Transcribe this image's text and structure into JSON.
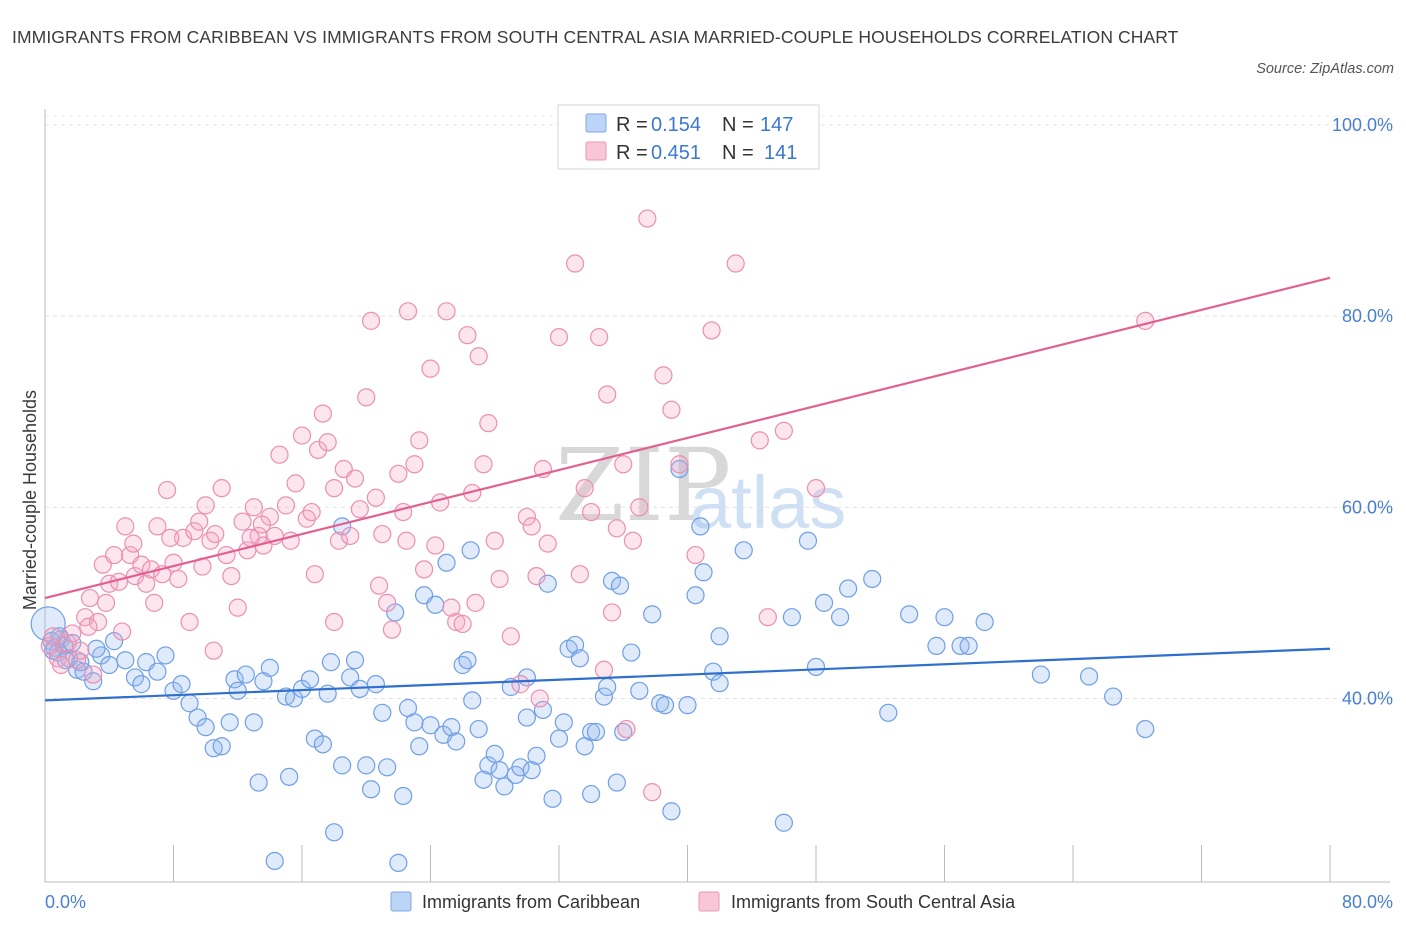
{
  "title": "IMMIGRANTS FROM CARIBBEAN VS IMMIGRANTS FROM SOUTH CENTRAL ASIA MARRIED-COUPLE HOUSEHOLDS CORRELATION CHART",
  "source": "Source: ZipAtlas.com",
  "watermark": {
    "zip": "ZIP",
    "atlas": "atlas"
  },
  "legend": {
    "r_label": "R =",
    "n_label": "N =",
    "items": [
      {
        "r": "0.154",
        "n": "147"
      },
      {
        "r": "0.451",
        "n": "141"
      }
    ]
  },
  "chart_data": {
    "type": "scatter",
    "title": "IMMIGRANTS FROM CARIBBEAN VS IMMIGRANTS FROM SOUTH CENTRAL ASIA MARRIED-COUPLE HOUSEHOLDS CORRELATION CHART",
    "xlabel": "",
    "ylabel": "Married-couple Households",
    "xlim": [
      0,
      80
    ],
    "ylim": [
      20.8,
      102.5
    ],
    "x_tick_labels": [
      {
        "value": 0,
        "label": "0.0%"
      },
      {
        "value": 80,
        "label": "80.0%"
      }
    ],
    "y_tick_labels": [
      {
        "value": 40,
        "label": "40.0%"
      },
      {
        "value": 60,
        "label": "60.0%"
      },
      {
        "value": 80,
        "label": "80.0%"
      },
      {
        "value": 100,
        "label": "100.0%"
      }
    ],
    "grid": true,
    "legend_position": "top-center",
    "series": [
      {
        "name": "Immigrants from Caribbean",
        "color": "#6f9fe6",
        "trend": {
          "x": [
            0,
            80
          ],
          "y": [
            39.8,
            45.2
          ]
        },
        "points": [
          [
            0.2,
            47.8
          ],
          [
            0.4,
            46.0
          ],
          [
            0.6,
            45.3
          ],
          [
            0.8,
            44.8
          ],
          [
            1.0,
            46.2
          ],
          [
            1.2,
            45.5
          ],
          [
            1.5,
            44.2
          ],
          [
            2.0,
            43.0
          ],
          [
            2.2,
            43.8
          ],
          [
            3.5,
            44.5
          ],
          [
            0.5,
            45.0
          ],
          [
            0.9,
            46.5
          ],
          [
            1.3,
            44.0
          ],
          [
            1.7,
            45.8
          ],
          [
            2.4,
            42.8
          ],
          [
            3.0,
            41.8
          ],
          [
            3.2,
            45.2
          ],
          [
            4.0,
            43.5
          ],
          [
            4.3,
            46.0
          ],
          [
            5.0,
            44.0
          ],
          [
            5.6,
            42.2
          ],
          [
            6.0,
            41.5
          ],
          [
            6.3,
            43.8
          ],
          [
            7.0,
            42.8
          ],
          [
            7.5,
            44.5
          ],
          [
            8.0,
            40.8
          ],
          [
            8.5,
            41.5
          ],
          [
            9.0,
            39.5
          ],
          [
            9.5,
            38.0
          ],
          [
            10.0,
            37.0
          ],
          [
            10.5,
            34.8
          ],
          [
            11.0,
            35.0
          ],
          [
            11.5,
            37.5
          ],
          [
            11.8,
            42.0
          ],
          [
            12.0,
            40.8
          ],
          [
            12.5,
            42.5
          ],
          [
            13.0,
            37.5
          ],
          [
            13.3,
            31.2
          ],
          [
            13.6,
            41.8
          ],
          [
            14.0,
            43.2
          ],
          [
            14.3,
            23.0
          ],
          [
            15.0,
            40.2
          ],
          [
            15.2,
            31.8
          ],
          [
            15.5,
            40.0
          ],
          [
            16.0,
            41.0
          ],
          [
            16.5,
            42.0
          ],
          [
            16.8,
            35.8
          ],
          [
            17.3,
            35.2
          ],
          [
            17.6,
            40.5
          ],
          [
            17.8,
            43.8
          ],
          [
            18.0,
            26.0
          ],
          [
            18.5,
            33.0
          ],
          [
            19.0,
            42.2
          ],
          [
            19.3,
            44.0
          ],
          [
            19.6,
            41.0
          ],
          [
            20.0,
            33.0
          ],
          [
            20.3,
            30.5
          ],
          [
            20.6,
            41.5
          ],
          [
            21.0,
            38.5
          ],
          [
            21.3,
            32.8
          ],
          [
            21.8,
            49.0
          ],
          [
            22.0,
            22.8
          ],
          [
            22.3,
            29.8
          ],
          [
            22.6,
            39.0
          ],
          [
            23.0,
            37.5
          ],
          [
            23.3,
            35.0
          ],
          [
            23.6,
            50.8
          ],
          [
            24.0,
            37.2
          ],
          [
            24.3,
            49.8
          ],
          [
            24.8,
            36.2
          ],
          [
            25.0,
            54.2
          ],
          [
            25.3,
            37.0
          ],
          [
            25.6,
            35.5
          ],
          [
            26.0,
            43.5
          ],
          [
            26.3,
            44.0
          ],
          [
            26.6,
            39.8
          ],
          [
            27.0,
            36.8
          ],
          [
            27.3,
            31.5
          ],
          [
            27.6,
            33.0
          ],
          [
            28.0,
            34.2
          ],
          [
            28.3,
            32.5
          ],
          [
            28.6,
            30.8
          ],
          [
            29.0,
            41.2
          ],
          [
            29.3,
            32.0
          ],
          [
            29.6,
            32.8
          ],
          [
            30.0,
            42.2
          ],
          [
            30.3,
            32.5
          ],
          [
            30.6,
            34.0
          ],
          [
            31.0,
            38.8
          ],
          [
            31.3,
            52.0
          ],
          [
            31.6,
            29.5
          ],
          [
            32.0,
            35.8
          ],
          [
            32.3,
            37.5
          ],
          [
            32.6,
            45.2
          ],
          [
            33.0,
            45.6
          ],
          [
            33.3,
            44.2
          ],
          [
            33.6,
            35.0
          ],
          [
            34.0,
            36.5
          ],
          [
            34.3,
            36.5
          ],
          [
            34.8,
            40.2
          ],
          [
            35.0,
            41.2
          ],
          [
            35.3,
            52.3
          ],
          [
            35.6,
            31.2
          ],
          [
            35.8,
            51.8
          ],
          [
            36.0,
            36.5
          ],
          [
            36.5,
            44.8
          ],
          [
            37.0,
            40.8
          ],
          [
            37.8,
            48.8
          ],
          [
            38.3,
            39.5
          ],
          [
            38.6,
            39.3
          ],
          [
            39.0,
            28.2
          ],
          [
            40.0,
            39.3
          ],
          [
            40.5,
            50.8
          ],
          [
            41.0,
            53.2
          ],
          [
            41.6,
            42.8
          ],
          [
            42.0,
            41.6
          ],
          [
            43.5,
            55.5
          ],
          [
            46.0,
            27.0
          ],
          [
            46.5,
            48.5
          ],
          [
            48.0,
            43.3
          ],
          [
            48.5,
            50.0
          ],
          [
            49.5,
            48.5
          ],
          [
            50.0,
            51.5
          ],
          [
            51.5,
            52.5
          ],
          [
            52.5,
            38.5
          ],
          [
            53.8,
            48.8
          ],
          [
            55.5,
            45.5
          ],
          [
            56.0,
            48.5
          ],
          [
            57.0,
            45.5
          ],
          [
            57.5,
            45.5
          ],
          [
            58.5,
            48.0
          ],
          [
            62.0,
            42.5
          ],
          [
            65.0,
            42.3
          ],
          [
            66.5,
            40.2
          ],
          [
            68.5,
            36.8
          ],
          [
            26.5,
            55.5
          ],
          [
            18.5,
            58.0
          ],
          [
            30.0,
            38.0
          ],
          [
            34.0,
            30.0
          ],
          [
            39.5,
            64.0
          ],
          [
            40.8,
            58.0
          ],
          [
            42.0,
            46.5
          ],
          [
            47.5,
            56.5
          ]
        ]
      },
      {
        "name": "Immigrants from South Central Asia",
        "color": "#ec8fb0",
        "trend": {
          "x": [
            0,
            80
          ],
          "y": [
            50.5,
            84.0
          ]
        },
        "points": [
          [
            0.3,
            45.5
          ],
          [
            0.5,
            46.5
          ],
          [
            0.8,
            44.2
          ],
          [
            1.0,
            43.5
          ],
          [
            1.4,
            45.8
          ],
          [
            1.7,
            46.8
          ],
          [
            2.0,
            44.0
          ],
          [
            2.2,
            45.0
          ],
          [
            2.5,
            48.5
          ],
          [
            2.8,
            50.5
          ],
          [
            3.0,
            42.5
          ],
          [
            3.3,
            48.0
          ],
          [
            3.6,
            54.0
          ],
          [
            4.0,
            52.0
          ],
          [
            4.3,
            55.0
          ],
          [
            4.6,
            52.2
          ],
          [
            5.0,
            58.0
          ],
          [
            5.3,
            55.0
          ],
          [
            5.6,
            52.8
          ],
          [
            6.0,
            54.0
          ],
          [
            6.3,
            52.0
          ],
          [
            6.6,
            53.5
          ],
          [
            7.0,
            58.0
          ],
          [
            7.3,
            53.0
          ],
          [
            7.6,
            61.8
          ],
          [
            8.0,
            54.2
          ],
          [
            8.3,
            52.5
          ],
          [
            8.6,
            56.8
          ],
          [
            9.0,
            48.0
          ],
          [
            9.3,
            57.5
          ],
          [
            9.6,
            58.5
          ],
          [
            10.0,
            60.2
          ],
          [
            10.3,
            56.5
          ],
          [
            10.6,
            57.2
          ],
          [
            11.0,
            62.0
          ],
          [
            11.3,
            55.0
          ],
          [
            11.6,
            52.8
          ],
          [
            12.0,
            49.5
          ],
          [
            12.3,
            58.5
          ],
          [
            12.6,
            55.5
          ],
          [
            13.0,
            60.0
          ],
          [
            13.3,
            57.0
          ],
          [
            13.6,
            56.0
          ],
          [
            14.0,
            59.0
          ],
          [
            14.3,
            57.0
          ],
          [
            14.6,
            65.5
          ],
          [
            15.0,
            60.2
          ],
          [
            15.3,
            56.5
          ],
          [
            15.6,
            62.5
          ],
          [
            16.0,
            67.5
          ],
          [
            16.3,
            58.8
          ],
          [
            16.6,
            59.5
          ],
          [
            17.0,
            66.0
          ],
          [
            17.3,
            69.8
          ],
          [
            17.6,
            66.8
          ],
          [
            18.0,
            62.0
          ],
          [
            18.3,
            56.5
          ],
          [
            18.6,
            64.0
          ],
          [
            19.0,
            57.0
          ],
          [
            19.3,
            63.0
          ],
          [
            19.6,
            59.8
          ],
          [
            20.0,
            71.5
          ],
          [
            20.3,
            79.5
          ],
          [
            20.6,
            61.0
          ],
          [
            21.0,
            57.2
          ],
          [
            21.3,
            50.0
          ],
          [
            21.6,
            47.2
          ],
          [
            22.0,
            63.5
          ],
          [
            22.3,
            59.5
          ],
          [
            22.6,
            80.5
          ],
          [
            23.0,
            64.5
          ],
          [
            23.3,
            67.0
          ],
          [
            23.6,
            53.5
          ],
          [
            24.0,
            74.5
          ],
          [
            24.3,
            56.0
          ],
          [
            24.6,
            60.5
          ],
          [
            25.0,
            80.5
          ],
          [
            25.3,
            49.5
          ],
          [
            25.6,
            48.0
          ],
          [
            26.0,
            47.8
          ],
          [
            26.3,
            78.0
          ],
          [
            26.6,
            61.5
          ],
          [
            27.0,
            75.8
          ],
          [
            27.3,
            64.5
          ],
          [
            27.6,
            68.8
          ],
          [
            28.0,
            56.5
          ],
          [
            28.3,
            52.5
          ],
          [
            29.0,
            46.5
          ],
          [
            29.6,
            41.5
          ],
          [
            30.0,
            59.0
          ],
          [
            30.3,
            58.0
          ],
          [
            30.6,
            52.8
          ],
          [
            31.0,
            64.0
          ],
          [
            31.3,
            56.2
          ],
          [
            32.0,
            77.8
          ],
          [
            33.0,
            85.5
          ],
          [
            33.3,
            53.0
          ],
          [
            33.6,
            62.0
          ],
          [
            34.0,
            59.5
          ],
          [
            34.5,
            77.8
          ],
          [
            35.0,
            71.8
          ],
          [
            35.3,
            49.0
          ],
          [
            35.6,
            57.8
          ],
          [
            36.0,
            64.5
          ],
          [
            36.6,
            56.5
          ],
          [
            37.0,
            60.0
          ],
          [
            37.5,
            90.2
          ],
          [
            38.5,
            73.8
          ],
          [
            39.0,
            70.2
          ],
          [
            39.5,
            64.5
          ],
          [
            40.5,
            55.0
          ],
          [
            41.5,
            78.5
          ],
          [
            43.0,
            85.5
          ],
          [
            44.5,
            67.0
          ],
          [
            45.0,
            48.5
          ],
          [
            46.0,
            68.0
          ],
          [
            48.0,
            62.0
          ],
          [
            68.5,
            79.5
          ],
          [
            13.5,
            58.2
          ],
          [
            22.5,
            56.5
          ],
          [
            18.0,
            48.0
          ],
          [
            10.5,
            45.0
          ],
          [
            5.5,
            56.2
          ],
          [
            3.8,
            50.0
          ],
          [
            6.8,
            50.0
          ],
          [
            34.8,
            43.0
          ],
          [
            36.2,
            36.8
          ],
          [
            37.8,
            30.2
          ],
          [
            30.8,
            40.0
          ],
          [
            26.8,
            50.0
          ],
          [
            20.8,
            51.8
          ],
          [
            16.8,
            53.0
          ],
          [
            12.8,
            56.8
          ],
          [
            9.8,
            53.8
          ],
          [
            7.8,
            56.8
          ],
          [
            4.8,
            47.0
          ],
          [
            2.7,
            47.5
          ]
        ]
      }
    ]
  }
}
